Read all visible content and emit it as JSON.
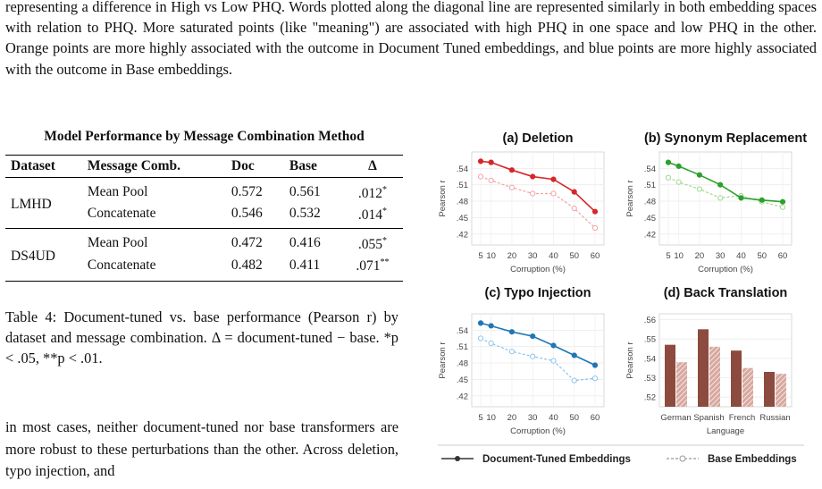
{
  "intro_text": "representing a difference in High vs Low PHQ. Words plotted along the diagonal line are represented similarly in both embedding spaces with relation to PHQ. More saturated points (like \"meaning\") are associated with high PHQ in one space and low PHQ in the other. Orange points are more highly associated with the outcome in Document Tuned embeddings, and blue points are more highly associated with the outcome in Base embeddings.",
  "table": {
    "title": "Model Performance by Message Combination Method",
    "headers": [
      "Dataset",
      "Message Comb.",
      "Doc",
      "Base",
      "Δ"
    ],
    "groups": [
      {
        "dataset": "LMHD",
        "rows": [
          {
            "method": "Mean Pool",
            "doc": "0.572",
            "base": "0.561",
            "delta": ".012",
            "sig": "*"
          },
          {
            "method": "Concatenate",
            "doc": "0.546",
            "base": "0.532",
            "delta": ".014",
            "sig": "*"
          }
        ]
      },
      {
        "dataset": "DS4UD",
        "rows": [
          {
            "method": "Mean Pool",
            "doc": "0.472",
            "base": "0.416",
            "delta": ".055",
            "sig": "*"
          },
          {
            "method": "Concatenate",
            "doc": "0.482",
            "base": "0.411",
            "delta": ".071",
            "sig": "**"
          }
        ]
      }
    ]
  },
  "caption": {
    "label": "Table 4:",
    "text": "Document-tuned vs. base performance (Pearson r) by dataset and message combination. Δ = document-tuned − base. *p < .05, **p < .01."
  },
  "body_text": "in most cases, neither document-tuned nor base transformers are more robust to these perturbations than the other. Across deletion, typo injection, and",
  "colors": {
    "deletion_doc": "#d62728",
    "deletion_base": "#f2a3a3",
    "synonym_doc": "#2ca02c",
    "synonym_base": "#9fd98f",
    "typo_doc": "#1f77b4",
    "typo_base": "#8cc4ea",
    "bar_doc": "#8c4b3e",
    "bar_base": "#d8a8a0"
  },
  "legend": {
    "doc_label": "Document-Tuned Embeddings",
    "base_label": "Base Embeddings"
  },
  "chart_data": [
    {
      "type": "line",
      "title": "(a) Deletion",
      "xlabel": "Corruption (%)",
      "ylabel": "Pearson r",
      "x": [
        5,
        10,
        20,
        30,
        40,
        50,
        60
      ],
      "yticks": [
        ".54",
        ".51",
        ".48",
        ".45",
        ".42"
      ],
      "ylim": [
        0.4,
        0.57
      ],
      "series": [
        {
          "name": "Document-Tuned Embeddings",
          "values": [
            0.553,
            0.551,
            0.537,
            0.525,
            0.52,
            0.497,
            0.461
          ]
        },
        {
          "name": "Base Embeddings",
          "values": [
            0.525,
            0.518,
            0.505,
            0.494,
            0.494,
            0.467,
            0.431
          ]
        }
      ]
    },
    {
      "type": "line",
      "title": "(b) Synonym Replacement",
      "xlabel": "Corruption (%)",
      "ylabel": "Pearson r",
      "x": [
        5,
        10,
        20,
        30,
        40,
        50,
        60
      ],
      "yticks": [
        ".54",
        ".51",
        ".48",
        ".45",
        ".42"
      ],
      "ylim": [
        0.4,
        0.57
      ],
      "series": [
        {
          "name": "Document-Tuned Embeddings",
          "values": [
            0.551,
            0.544,
            0.528,
            0.51,
            0.486,
            0.482,
            0.479
          ]
        },
        {
          "name": "Base Embeddings",
          "values": [
            0.523,
            0.515,
            0.502,
            0.486,
            0.49,
            0.479,
            0.469
          ]
        }
      ]
    },
    {
      "type": "line",
      "title": "(c) Typo Injection",
      "xlabel": "Corruption (%)",
      "ylabel": "Pearson r",
      "x": [
        5,
        10,
        20,
        30,
        40,
        50,
        60
      ],
      "yticks": [
        ".54",
        ".51",
        ".48",
        ".45",
        ".42"
      ],
      "ylim": [
        0.4,
        0.57
      ],
      "series": [
        {
          "name": "Document-Tuned Embeddings",
          "values": [
            0.553,
            0.548,
            0.537,
            0.529,
            0.512,
            0.494,
            0.476
          ]
        },
        {
          "name": "Base Embeddings",
          "values": [
            0.525,
            0.516,
            0.501,
            0.492,
            0.484,
            0.448,
            0.452
          ]
        }
      ]
    },
    {
      "type": "bar",
      "title": "(d) Back Translation",
      "xlabel": "Language",
      "ylabel": "Pearson r",
      "categories": [
        "German",
        "Spanish",
        "French",
        "Russian"
      ],
      "yticks": [
        ".56",
        ".55",
        ".54",
        ".53",
        ".52"
      ],
      "ylim": [
        0.515,
        0.563
      ],
      "series": [
        {
          "name": "Document-Tuned Embeddings",
          "values": [
            0.547,
            0.555,
            0.544,
            0.533
          ]
        },
        {
          "name": "Base Embeddings",
          "values": [
            0.538,
            0.546,
            0.535,
            0.532
          ]
        }
      ]
    }
  ]
}
